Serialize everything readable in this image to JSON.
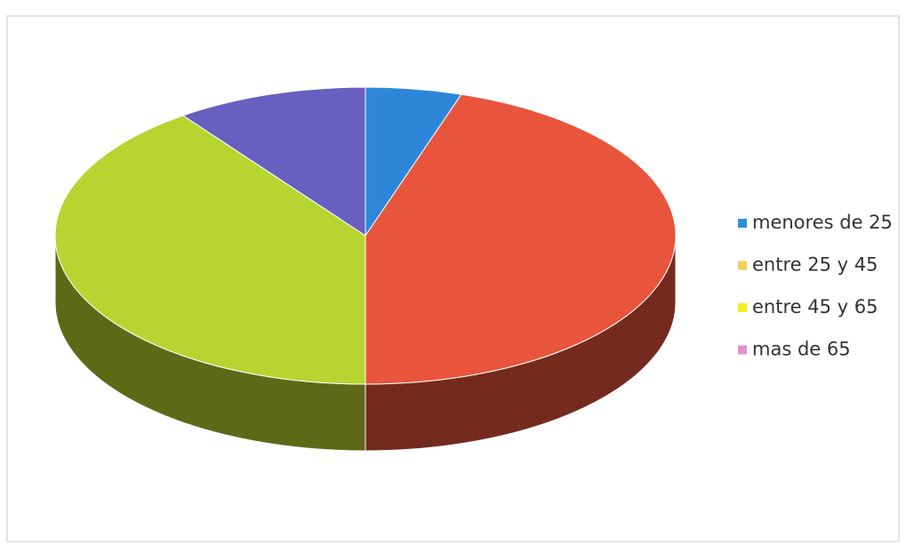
{
  "chart_data": {
    "type": "pie3d",
    "categories": [
      "menores de 25",
      "entre 25 y 45",
      "entre 45 y 65",
      "mas de 65"
    ],
    "values": [
      5,
      45,
      40,
      10
    ],
    "colors": [
      "#2e8fd8",
      "#f2cf5a",
      "#f4ee1c",
      "#e58fcf"
    ],
    "slice_colors": [
      "#2e86d8",
      "#e8553c",
      "#b8d430",
      "#6a5ec0"
    ],
    "legend": "right"
  }
}
